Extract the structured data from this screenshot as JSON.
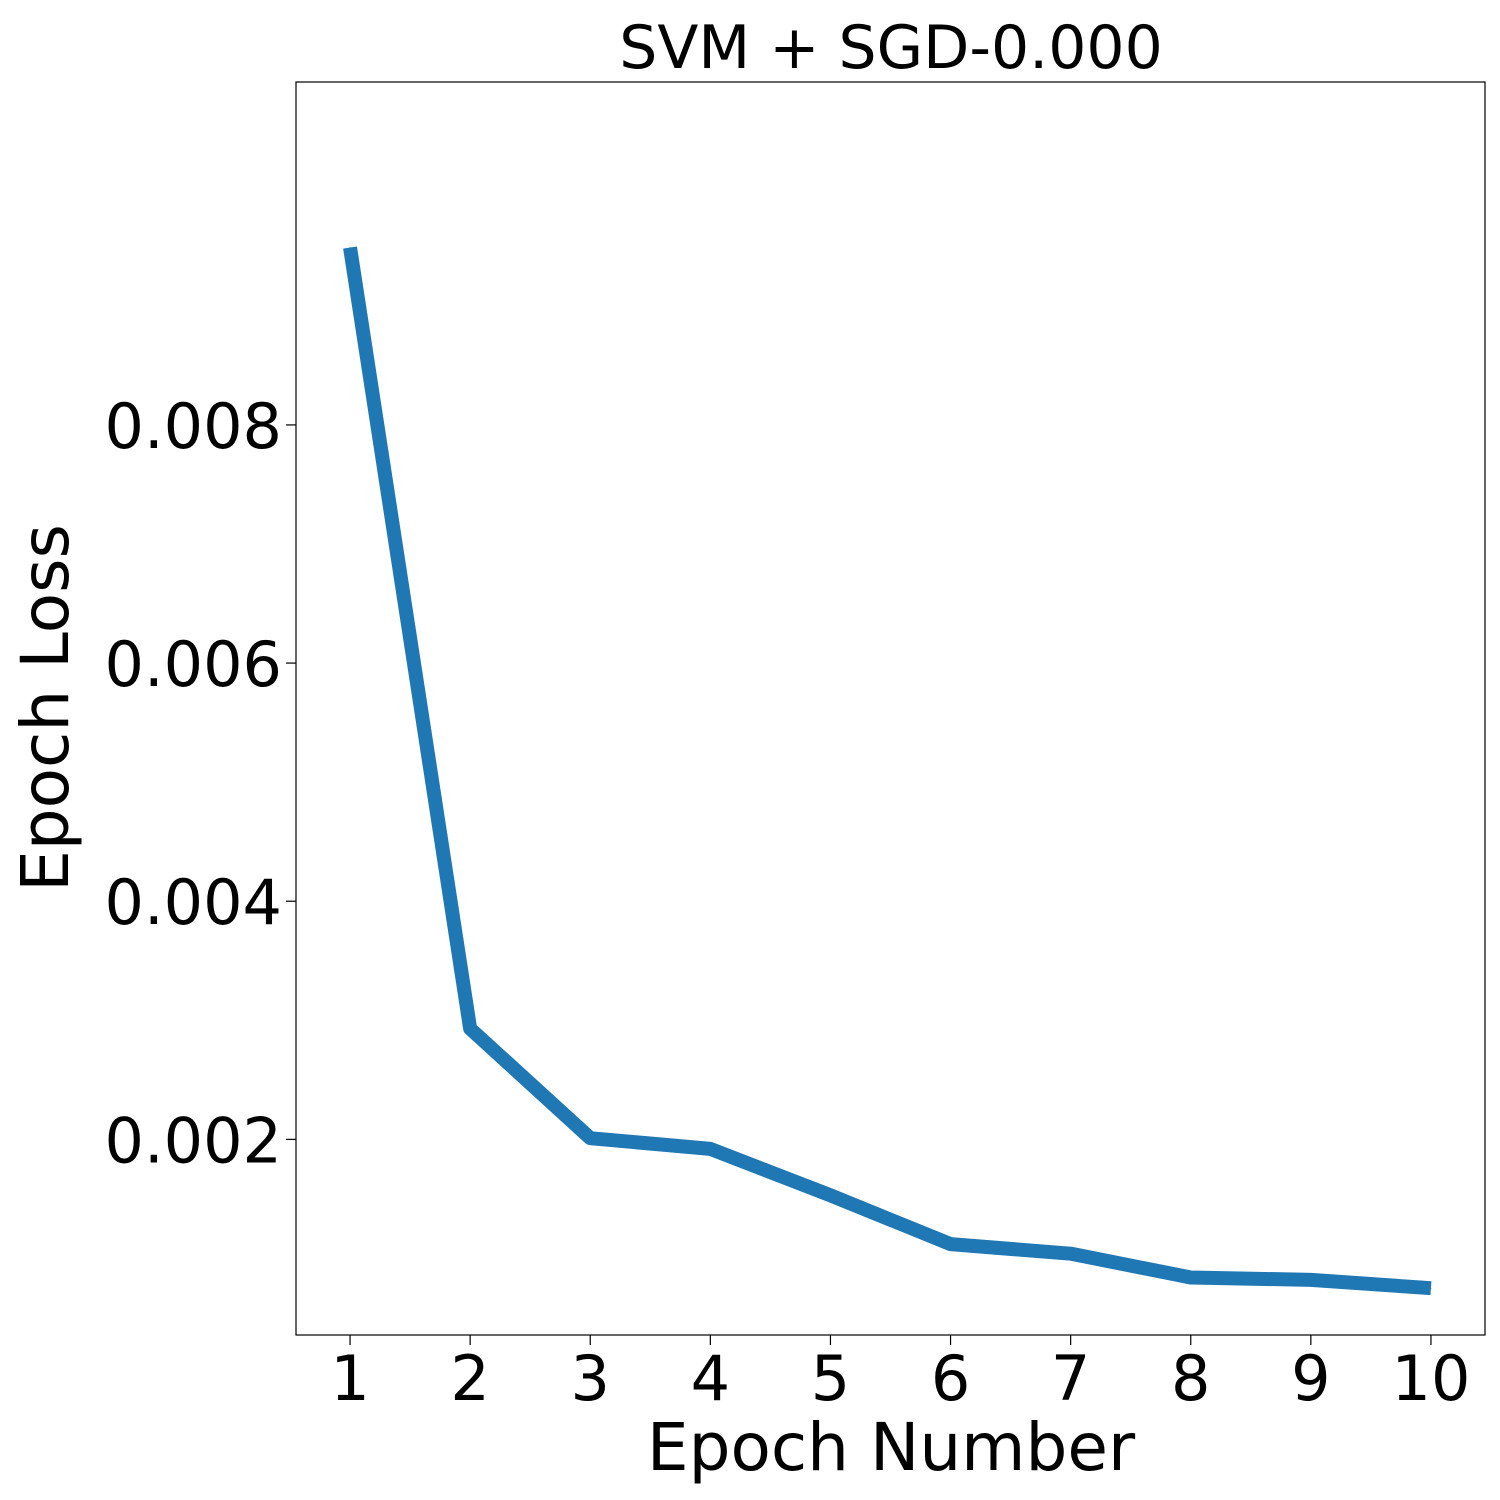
{
  "chart_data": {
    "type": "line",
    "title": "SVM + SGD-0.000",
    "xlabel": "Epoch Number",
    "ylabel": "Epoch Loss",
    "x": [
      1,
      2,
      3,
      4,
      5,
      6,
      7,
      8,
      9,
      10
    ],
    "series": [
      {
        "values": [
          0.00949,
          0.00293,
          0.00201,
          0.00192,
          0.00153,
          0.00112,
          0.00104,
          0.00084,
          0.00082,
          0.00075
        ],
        "color": "#1f77b4"
      }
    ],
    "xticks": [
      "1",
      "2",
      "3",
      "4",
      "5",
      "6",
      "7",
      "8",
      "9",
      "10"
    ],
    "yticks": [
      {
        "value": 0.002,
        "label": "0.002"
      },
      {
        "value": 0.004,
        "label": "0.004"
      },
      {
        "value": 0.006,
        "label": "0.006"
      },
      {
        "value": 0.008,
        "label": "0.008"
      }
    ],
    "xlim": [
      0.55,
      10.45
    ],
    "ylim": [
      0.000357,
      0.01088
    ],
    "grid": false,
    "legend": "none"
  }
}
